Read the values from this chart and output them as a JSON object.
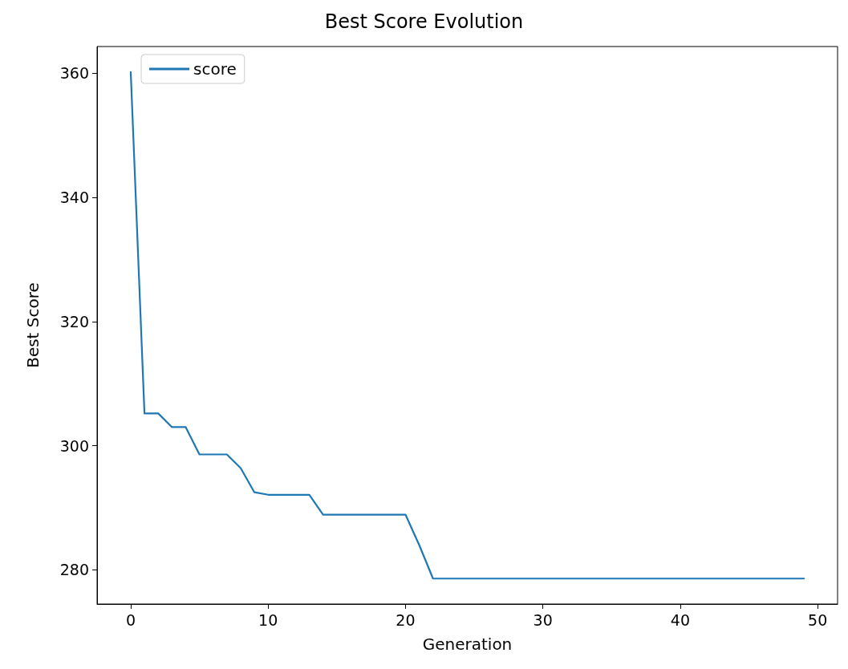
{
  "chart_data": {
    "type": "line",
    "title": "Best Score Evolution",
    "xlabel": "Generation",
    "ylabel": "Best Score",
    "x": [
      0,
      1,
      2,
      3,
      4,
      5,
      6,
      7,
      8,
      9,
      10,
      11,
      12,
      13,
      14,
      15,
      16,
      17,
      18,
      19,
      20,
      21,
      22,
      23,
      24,
      25,
      26,
      27,
      28,
      29,
      30,
      31,
      32,
      33,
      34,
      35,
      36,
      37,
      38,
      39,
      40,
      41,
      42,
      43,
      44,
      45,
      46,
      47,
      48,
      49
    ],
    "series": [
      {
        "name": "score",
        "color": "#1f77b4",
        "values": [
          360.2,
          305.2,
          305.2,
          303.0,
          303.0,
          298.6,
          298.6,
          298.6,
          296.4,
          292.5,
          292.1,
          292.1,
          292.1,
          292.1,
          288.9,
          288.9,
          288.9,
          288.9,
          288.9,
          288.9,
          288.9,
          284.0,
          278.6,
          278.6,
          278.6,
          278.6,
          278.6,
          278.6,
          278.6,
          278.6,
          278.6,
          278.6,
          278.6,
          278.6,
          278.6,
          278.6,
          278.6,
          278.6,
          278.6,
          278.6,
          278.6,
          278.6,
          278.6,
          278.6,
          278.6,
          278.6,
          278.6,
          278.6,
          278.6,
          278.6
        ]
      }
    ],
    "xlim": [
      -2.45,
      51.45
    ],
    "xticks": [
      0,
      10,
      20,
      30,
      40,
      50
    ],
    "ylim": [
      274.5,
      364.3
    ],
    "yticks": [
      280,
      300,
      320,
      340,
      360
    ],
    "grid": false,
    "legend": "top left",
    "marker": "none",
    "line_style": "solid"
  }
}
